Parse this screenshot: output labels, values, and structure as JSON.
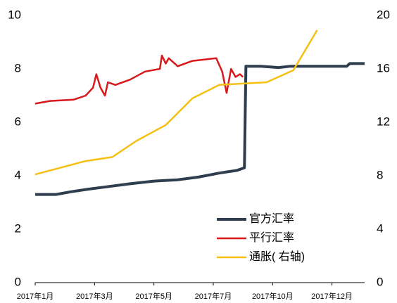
{
  "chart_data": {
    "type": "line",
    "xticks": [
      {
        "value": 0,
        "label": "2017年1月"
      },
      {
        "value": 2,
        "label": "2017年3月"
      },
      {
        "value": 4,
        "label": "2017年5月"
      },
      {
        "value": 6,
        "label": "2017年7月"
      },
      {
        "value": 8,
        "label": "2017年10月"
      },
      {
        "value": 10,
        "label": "2017年12月"
      }
    ],
    "xlim": [
      0,
      11.1
    ],
    "ylim": [
      0,
      10
    ],
    "yticks": [
      0,
      2,
      4,
      6,
      8,
      10
    ],
    "y2lim": [
      0,
      20
    ],
    "y2ticks": [
      0,
      4,
      8,
      12,
      16,
      20
    ],
    "legend": "lower right",
    "series": [
      {
        "name": "官方汇率",
        "color": "#2e3e4e",
        "x": [
          0,
          0.7,
          1.2,
          1.8,
          2.5,
          3.2,
          4,
          4.8,
          5.5,
          6.2,
          6.8,
          7.05,
          7.1,
          7.6,
          8.2,
          8.6,
          10.5,
          10.6,
          11.1
        ],
        "values": [
          3.3,
          3.3,
          3.4,
          3.5,
          3.6,
          3.7,
          3.8,
          3.85,
          3.95,
          4.1,
          4.2,
          4.3,
          8.1,
          8.1,
          8.05,
          8.1,
          8.1,
          8.2,
          8.2
        ]
      },
      {
        "name": "平行汇率",
        "color": "#d7191c",
        "x": [
          0,
          0.5,
          1.3,
          1.7,
          1.95,
          2.06,
          2.2,
          2.35,
          2.45,
          2.7,
          3.2,
          3.7,
          4.2,
          4.27,
          4.4,
          4.5,
          4.8,
          5.3,
          6.1,
          6.3,
          6.45,
          6.6,
          6.75,
          6.9,
          7.0
        ],
        "values": [
          6.7,
          6.8,
          6.85,
          7.0,
          7.3,
          7.8,
          7.3,
          7.0,
          7.5,
          7.4,
          7.6,
          7.9,
          8.0,
          8.5,
          8.2,
          8.4,
          8.1,
          8.3,
          8.4,
          7.9,
          7.1,
          8.0,
          7.7,
          7.8,
          7.7
        ]
      },
      {
        "name": "通胀( 右轴)",
        "color": "#f5c013",
        "axis": "y2",
        "x": [
          0,
          1.7,
          2.6,
          3.4,
          4.4,
          5.3,
          6.2,
          7.8,
          8.7,
          9.5
        ],
        "values": [
          8.1,
          9.1,
          9.4,
          10.6,
          11.8,
          13.8,
          14.8,
          15.0,
          15.9,
          18.9
        ]
      }
    ]
  }
}
